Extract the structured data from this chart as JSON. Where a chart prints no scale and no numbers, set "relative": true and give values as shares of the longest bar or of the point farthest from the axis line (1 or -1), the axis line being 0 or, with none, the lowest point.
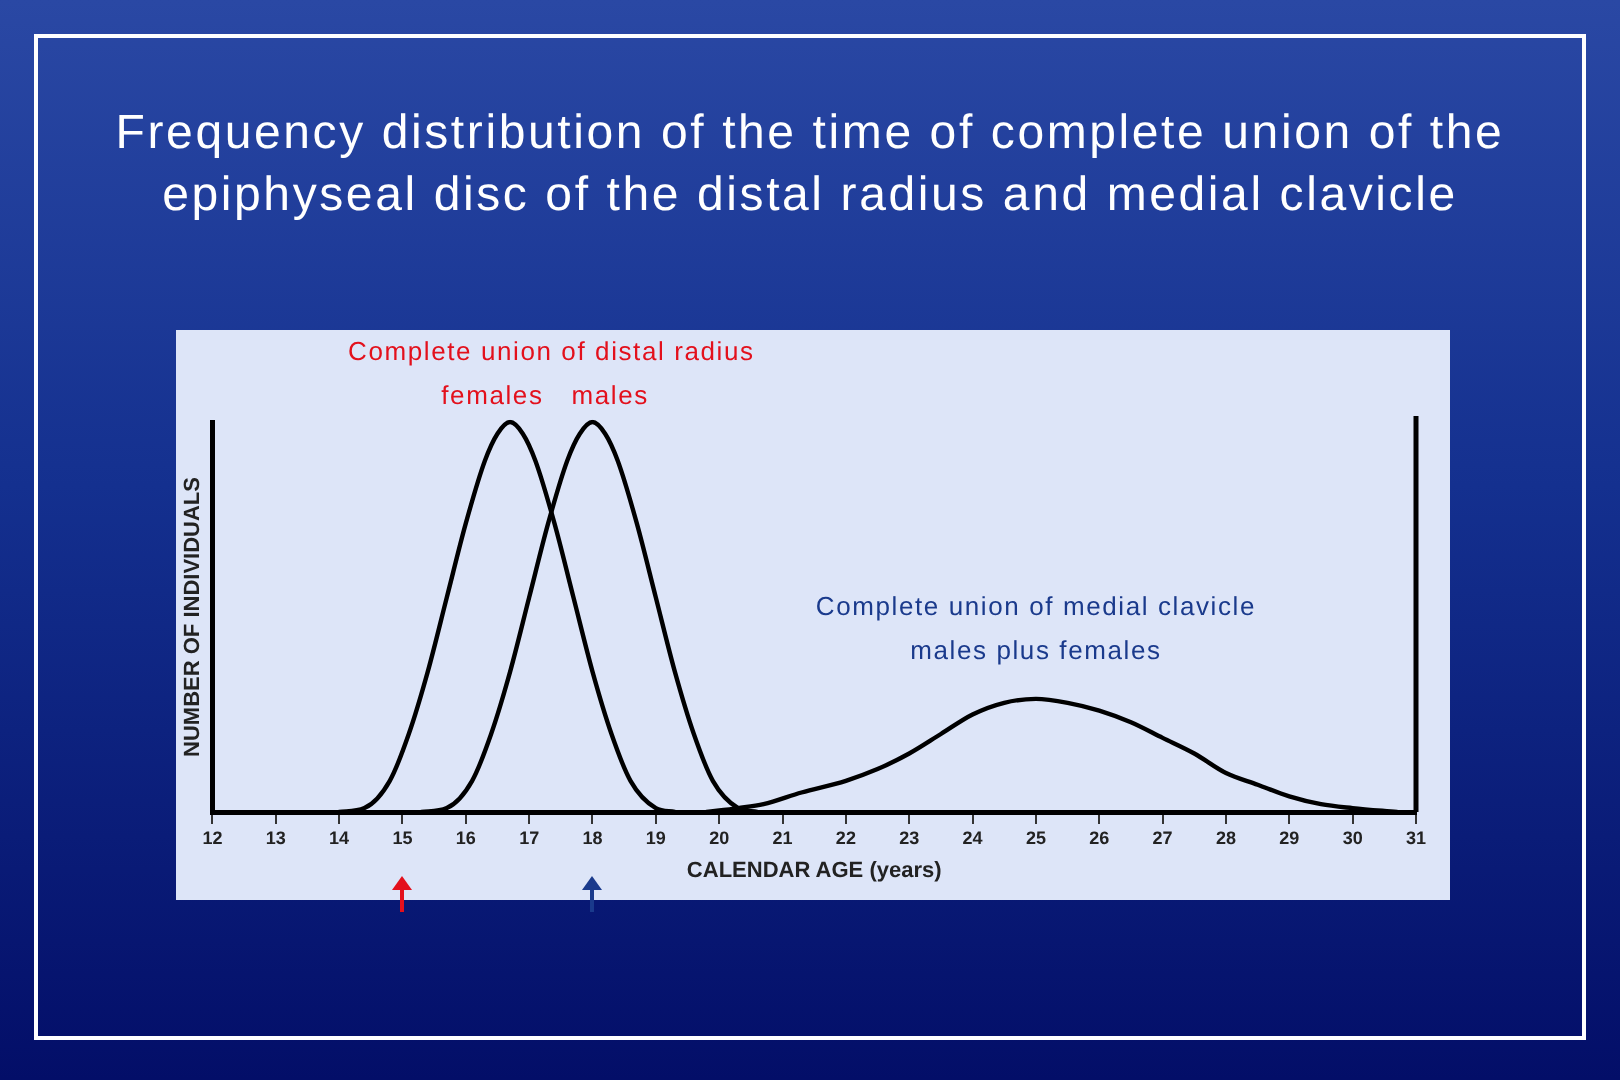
{
  "chart_data": {
    "type": "line",
    "title": "Frequency distribution of the time of complete union of the epiphyseal disc of the distal radius and medial clavicle",
    "xlabel": "CALENDAR AGE (years)",
    "ylabel": "NUMBER OF INDIVIDUALS",
    "relative": true,
    "marker": "none",
    "xlim": [
      12,
      31
    ],
    "xticks": [
      12,
      13,
      14,
      15,
      16,
      17,
      18,
      19,
      20,
      21,
      22,
      23,
      24,
      25,
      26,
      27,
      28,
      29,
      30,
      31
    ],
    "annotations": [
      "Complete union of distal radius",
      "Complete union of medial clavicle"
    ],
    "series": [
      {
        "name": "females",
        "color": "#000000",
        "x": [
          14.0,
          14.4,
          14.8,
          15.1,
          15.4,
          15.7,
          16.0,
          16.3,
          16.5,
          16.7,
          16.9,
          17.1,
          17.4,
          17.7,
          18.0,
          18.3,
          18.6,
          19.0,
          19.3
        ],
        "values": [
          0,
          0.01,
          0.08,
          0.2,
          0.36,
          0.55,
          0.74,
          0.9,
          0.97,
          1,
          0.97,
          0.9,
          0.74,
          0.55,
          0.36,
          0.2,
          0.08,
          0.01,
          0
        ]
      },
      {
        "name": "males",
        "color": "#000000",
        "x": [
          15.3,
          15.7,
          16.1,
          16.4,
          16.7,
          17.0,
          17.3,
          17.6,
          17.8,
          18.0,
          18.2,
          18.4,
          18.7,
          19.0,
          19.3,
          19.6,
          19.9,
          20.3,
          20.6
        ],
        "values": [
          0,
          0.01,
          0.08,
          0.2,
          0.36,
          0.55,
          0.74,
          0.9,
          0.97,
          1,
          0.97,
          0.9,
          0.74,
          0.55,
          0.36,
          0.2,
          0.08,
          0.01,
          0
        ]
      },
      {
        "name": "males plus females",
        "color": "#000000",
        "x": [
          19.8,
          20.3,
          20.7,
          21.3,
          22.0,
          22.5,
          23.0,
          23.5,
          24.0,
          24.5,
          25.0,
          25.5,
          26.0,
          26.5,
          27.0,
          27.5,
          28.0,
          28.5,
          29.0,
          29.5,
          30.0,
          30.7
        ],
        "values": [
          0,
          0.01,
          0.02,
          0.05,
          0.08,
          0.11,
          0.15,
          0.2,
          0.25,
          0.28,
          0.29,
          0.28,
          0.26,
          0.23,
          0.19,
          0.15,
          0.1,
          0.07,
          0.04,
          0.02,
          0.01,
          0
        ]
      }
    ]
  }
}
